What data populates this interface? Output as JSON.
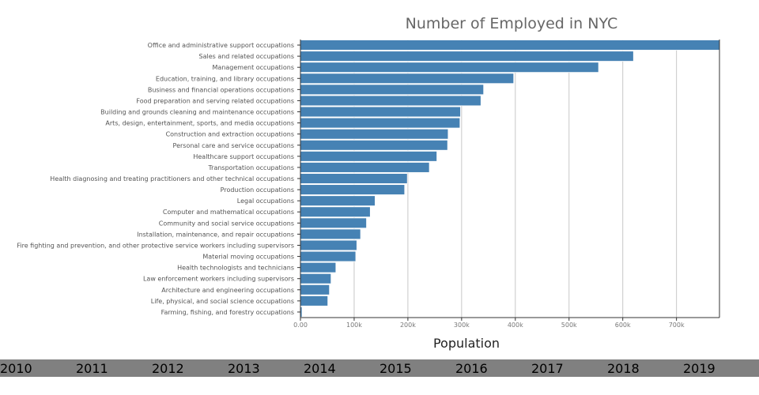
{
  "chart_data": {
    "type": "bar",
    "orientation": "horizontal",
    "title": "Number of Employed in NYC",
    "xlabel": "Population",
    "ylabel": "",
    "xlim": [
      0,
      780000
    ],
    "xticks": [
      0,
      100000,
      200000,
      300000,
      400000,
      500000,
      600000,
      700000
    ],
    "xtick_labels": [
      "0.00",
      "100k",
      "200k",
      "300k",
      "400k",
      "500k",
      "600k",
      "700k"
    ],
    "grid": true,
    "bar_color": "#4682b4",
    "categories": [
      "Office and administrative support occupations",
      "Sales and related occupations",
      "Management occupations",
      "Education, training, and library occupations",
      "Business and financial operations occupations",
      "Food preparation and serving related occupations",
      "Building and grounds cleaning and maintenance occupations",
      "Arts, design, entertainment, sports, and media occupations",
      "Construction and extraction occupations",
      "Personal care and service occupations",
      "Healthcare support occupations",
      "Transportation occupations",
      "Health diagnosing and treating practitioners and other technical occupations",
      "Production occupations",
      "Legal occupations",
      "Computer and mathematical occupations",
      "Community and social service occupations",
      "Installation, maintenance, and repair occupations",
      "Fire fighting and prevention, and other protective service workers including supervisors",
      "Material moving occupations",
      "Health technologists and technicians",
      "Law enforcement workers including supervisors",
      "Architecture and engineering occupations",
      "Life, physical, and social science occupations",
      "Farming, fishing, and forestry occupations"
    ],
    "values": [
      780000,
      620000,
      555000,
      397000,
      341000,
      336000,
      298000,
      297000,
      275000,
      274000,
      254000,
      240000,
      199000,
      194000,
      139000,
      130000,
      123000,
      112000,
      105000,
      103000,
      66000,
      57000,
      54000,
      51000,
      3000
    ]
  },
  "timeline": {
    "background": "#808080",
    "years": [
      "2010",
      "2011",
      "2012",
      "2013",
      "2014",
      "2015",
      "2016",
      "2017",
      "2018",
      "2019"
    ]
  }
}
